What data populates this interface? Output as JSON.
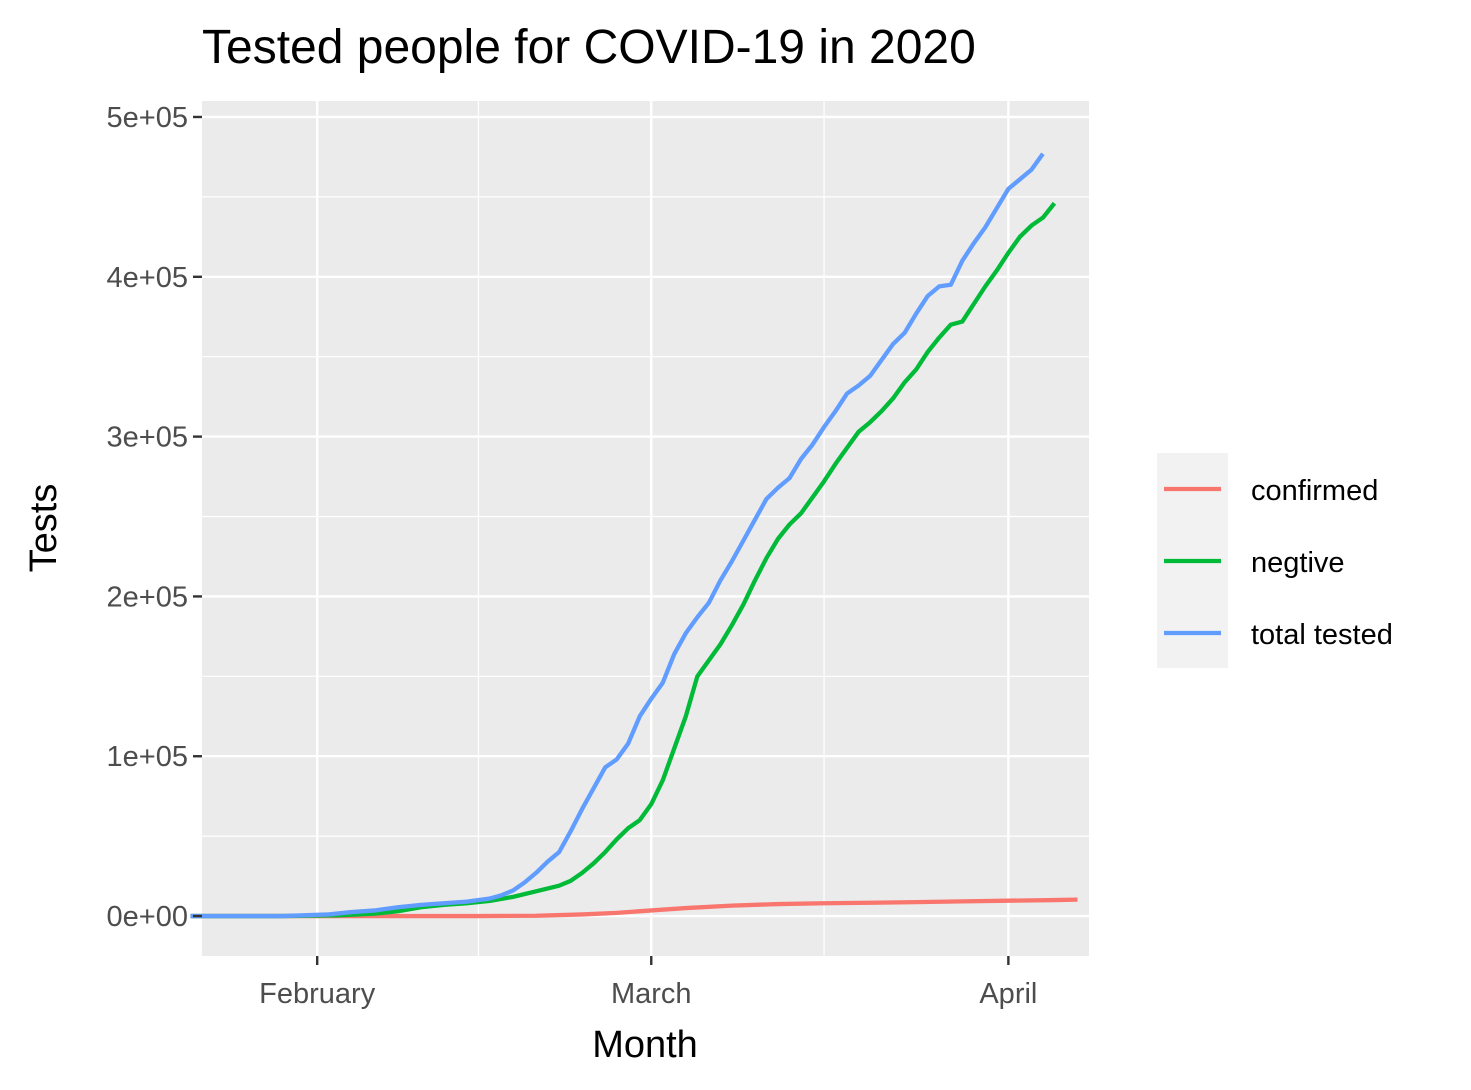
{
  "chart_data": {
    "type": "line",
    "title": "Tested people for COVID-19 in 2020",
    "xlabel": "Month",
    "ylabel": "Tests",
    "xlim": [
      "2020-01-22",
      "2020-04-08"
    ],
    "ylim": [
      -25000,
      510000
    ],
    "x_ticks": [
      {
        "date": "2020-02-01",
        "label": "February"
      },
      {
        "date": "2020-03-01",
        "label": "March"
      },
      {
        "date": "2020-04-01",
        "label": "April"
      }
    ],
    "x_minor_ticks": [
      "2020-01-17",
      "2020-02-15",
      "2020-03-16"
    ],
    "y_ticks": [
      {
        "value": 0,
        "label": "0e+00"
      },
      {
        "value": 100000,
        "label": "1e+05"
      },
      {
        "value": 200000,
        "label": "2e+05"
      },
      {
        "value": 300000,
        "label": "3e+05"
      },
      {
        "value": 400000,
        "label": "4e+05"
      },
      {
        "value": 500000,
        "label": "5e+05"
      }
    ],
    "grid": true,
    "legend": {
      "position": "right"
    },
    "series": [
      {
        "name": "confirmed",
        "color": "#F8766D",
        "points": [
          [
            "2020-01-21",
            0
          ],
          [
            "2020-02-15",
            0
          ],
          [
            "2020-02-20",
            200
          ],
          [
            "2020-02-24",
            1000
          ],
          [
            "2020-02-27",
            2000
          ],
          [
            "2020-03-01",
            3500
          ],
          [
            "2020-03-04",
            5000
          ],
          [
            "2020-03-08",
            6500
          ],
          [
            "2020-03-12",
            7500
          ],
          [
            "2020-03-16",
            8000
          ],
          [
            "2020-03-20",
            8300
          ],
          [
            "2020-03-24",
            8700
          ],
          [
            "2020-03-28",
            9200
          ],
          [
            "2020-04-01",
            9600
          ],
          [
            "2020-04-05",
            10000
          ],
          [
            "2020-04-07",
            10300
          ]
        ]
      },
      {
        "name": "negtive",
        "color": "#00BA38",
        "points": [
          [
            "2020-01-21",
            0
          ],
          [
            "2020-01-29",
            0
          ],
          [
            "2020-02-03",
            500
          ],
          [
            "2020-02-06",
            1500
          ],
          [
            "2020-02-08",
            3000
          ],
          [
            "2020-02-10",
            5500
          ],
          [
            "2020-02-12",
            7000
          ],
          [
            "2020-02-14",
            8000
          ],
          [
            "2020-02-16",
            9500
          ],
          [
            "2020-02-18",
            12000
          ],
          [
            "2020-02-20",
            15500
          ],
          [
            "2020-02-22",
            19000
          ],
          [
            "2020-02-23",
            22000
          ],
          [
            "2020-02-24",
            27000
          ],
          [
            "2020-02-25",
            33000
          ],
          [
            "2020-02-26",
            40000
          ],
          [
            "2020-02-27",
            48000
          ],
          [
            "2020-02-28",
            55000
          ],
          [
            "2020-02-29",
            60000
          ],
          [
            "2020-03-01",
            70000
          ],
          [
            "2020-03-02",
            85000
          ],
          [
            "2020-03-03",
            105000
          ],
          [
            "2020-03-04",
            125000
          ],
          [
            "2020-03-05",
            150000
          ],
          [
            "2020-03-06",
            160000
          ],
          [
            "2020-03-07",
            170000
          ],
          [
            "2020-03-08",
            182000
          ],
          [
            "2020-03-09",
            195000
          ],
          [
            "2020-03-10",
            210000
          ],
          [
            "2020-03-11",
            224000
          ],
          [
            "2020-03-12",
            236000
          ],
          [
            "2020-03-13",
            245000
          ],
          [
            "2020-03-14",
            252000
          ],
          [
            "2020-03-15",
            262000
          ],
          [
            "2020-03-16",
            272000
          ],
          [
            "2020-03-17",
            283000
          ],
          [
            "2020-03-18",
            293000
          ],
          [
            "2020-03-19",
            303000
          ],
          [
            "2020-03-20",
            309000
          ],
          [
            "2020-03-21",
            316000
          ],
          [
            "2020-03-22",
            324000
          ],
          [
            "2020-03-23",
            334000
          ],
          [
            "2020-03-24",
            342000
          ],
          [
            "2020-03-25",
            353000
          ],
          [
            "2020-03-26",
            362000
          ],
          [
            "2020-03-27",
            370000
          ],
          [
            "2020-03-28",
            372000
          ],
          [
            "2020-03-29",
            383000
          ],
          [
            "2020-03-30",
            394000
          ],
          [
            "2020-03-31",
            404000
          ],
          [
            "2020-04-01",
            415000
          ],
          [
            "2020-04-02",
            425000
          ],
          [
            "2020-04-03",
            432000
          ],
          [
            "2020-04-04",
            437000
          ],
          [
            "2020-04-05",
            446000
          ]
        ]
      },
      {
        "name": "total tested",
        "color": "#619CFF",
        "points": [
          [
            "2020-01-21",
            0
          ],
          [
            "2020-01-29",
            0
          ],
          [
            "2020-02-02",
            1000
          ],
          [
            "2020-02-04",
            2500
          ],
          [
            "2020-02-06",
            3500
          ],
          [
            "2020-02-08",
            5500
          ],
          [
            "2020-02-10",
            7000
          ],
          [
            "2020-02-12",
            8000
          ],
          [
            "2020-02-14",
            9000
          ],
          [
            "2020-02-16",
            11000
          ],
          [
            "2020-02-17",
            13000
          ],
          [
            "2020-02-18",
            16000
          ],
          [
            "2020-02-19",
            21000
          ],
          [
            "2020-02-20",
            27000
          ],
          [
            "2020-02-21",
            34000
          ],
          [
            "2020-02-22",
            40000
          ],
          [
            "2020-02-23",
            53000
          ],
          [
            "2020-02-24",
            67000
          ],
          [
            "2020-02-25",
            80000
          ],
          [
            "2020-02-26",
            93000
          ],
          [
            "2020-02-27",
            98000
          ],
          [
            "2020-02-28",
            108000
          ],
          [
            "2020-02-29",
            125000
          ],
          [
            "2020-03-01",
            136000
          ],
          [
            "2020-03-02",
            146000
          ],
          [
            "2020-03-03",
            164000
          ],
          [
            "2020-03-04",
            177000
          ],
          [
            "2020-03-05",
            187000
          ],
          [
            "2020-03-06",
            196000
          ],
          [
            "2020-03-07",
            210000
          ],
          [
            "2020-03-08",
            222000
          ],
          [
            "2020-03-09",
            235000
          ],
          [
            "2020-03-10",
            248000
          ],
          [
            "2020-03-11",
            261000
          ],
          [
            "2020-03-12",
            268000
          ],
          [
            "2020-03-13",
            274000
          ],
          [
            "2020-03-14",
            286000
          ],
          [
            "2020-03-15",
            295000
          ],
          [
            "2020-03-16",
            306000
          ],
          [
            "2020-03-17",
            316000
          ],
          [
            "2020-03-18",
            327000
          ],
          [
            "2020-03-19",
            332000
          ],
          [
            "2020-03-20",
            338000
          ],
          [
            "2020-03-21",
            348000
          ],
          [
            "2020-03-22",
            358000
          ],
          [
            "2020-03-23",
            365000
          ],
          [
            "2020-03-24",
            377000
          ],
          [
            "2020-03-25",
            388000
          ],
          [
            "2020-03-26",
            394000
          ],
          [
            "2020-03-27",
            395000
          ],
          [
            "2020-03-28",
            410000
          ],
          [
            "2020-03-29",
            421000
          ],
          [
            "2020-03-30",
            431000
          ],
          [
            "2020-03-31",
            443000
          ],
          [
            "2020-04-01",
            455000
          ],
          [
            "2020-04-02",
            461000
          ],
          [
            "2020-04-03",
            467000
          ],
          [
            "2020-04-04",
            477000
          ]
        ]
      }
    ]
  }
}
